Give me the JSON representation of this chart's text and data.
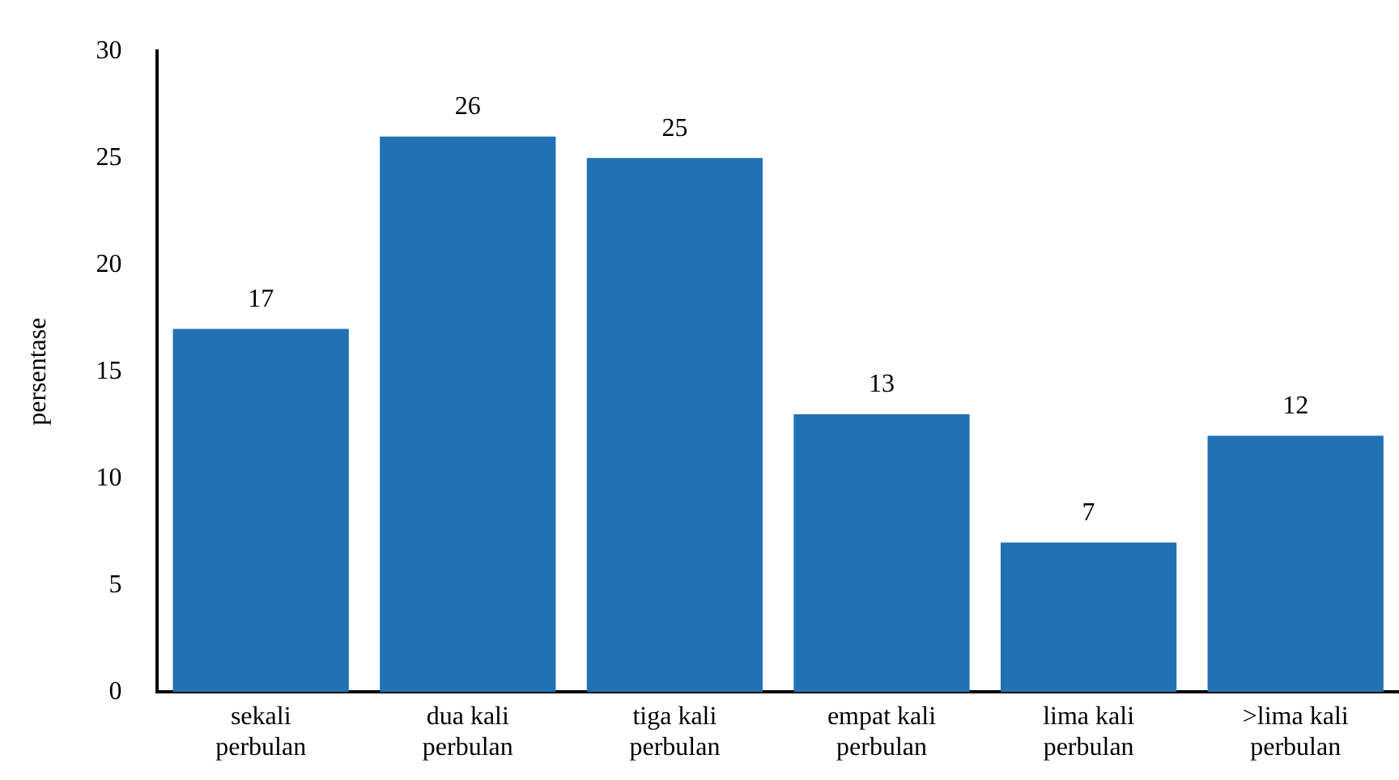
{
  "chart_data": {
    "type": "bar",
    "ylabel": "persentase",
    "categories": [
      "sekali perbulan",
      "dua kali perbulan",
      "tiga kali perbulan",
      "empat kali perbulan",
      "lima kali perbulan",
      ">lima kali perbulan"
    ],
    "values": [
      17,
      26,
      25,
      13,
      7,
      12
    ],
    "color": "#2072b5",
    "ylim": [
      0,
      30
    ],
    "yticks": [
      0,
      5,
      10,
      15,
      20,
      25,
      30
    ],
    "grid": false,
    "data_labels": true
  }
}
